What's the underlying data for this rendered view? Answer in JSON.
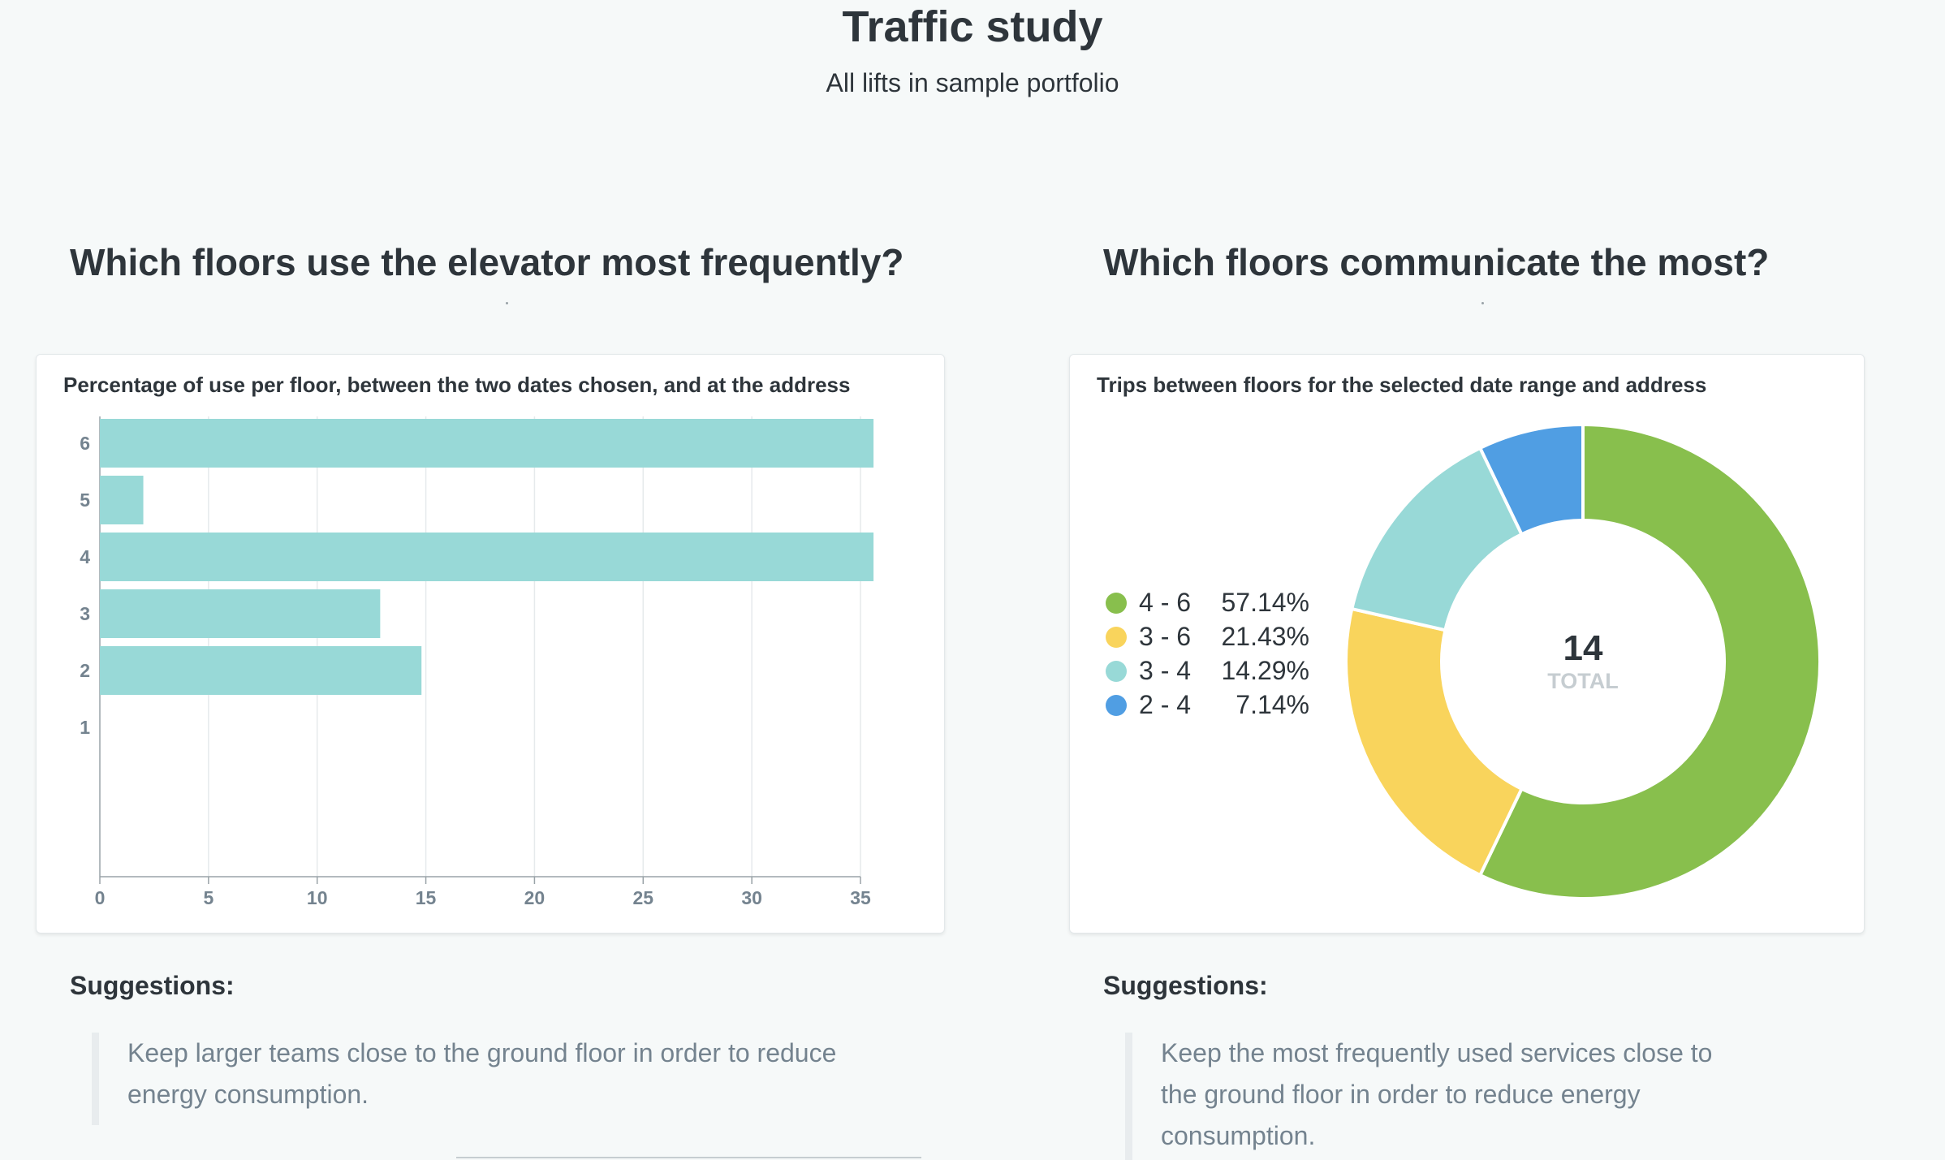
{
  "header": {
    "title": "Traffic study",
    "subtitle": "All lifts in sample portfolio"
  },
  "left_section": {
    "title": "Which floors use the elevator most frequently?",
    "card_title": "Percentage of use per floor, between the two dates chosen, and at the address",
    "suggestions_label": "Suggestions:",
    "suggestion_text": "Keep larger teams close to the ground floor in order to reduce energy consumption."
  },
  "right_section": {
    "title": "Which floors communicate the most?",
    "card_title": "Trips between floors for the selected date range and address",
    "suggestions_label": "Suggestions:",
    "suggestion_text": "Keep the most frequently used services close to the ground floor in order to reduce energy consumption."
  },
  "chart_data": [
    {
      "type": "bar",
      "orientation": "horizontal",
      "title": "Percentage of use per floor, between the two dates chosen, and at the address",
      "categories": [
        "6",
        "5",
        "4",
        "3",
        "2",
        "1"
      ],
      "values": [
        35.7,
        2.0,
        35.7,
        12.9,
        14.8,
        0
      ],
      "xlim": [
        0,
        35
      ],
      "xticks": [
        0,
        5,
        10,
        15,
        20,
        25,
        30,
        35
      ],
      "grid": true,
      "color": "#98d9d7"
    },
    {
      "type": "pie",
      "donut": true,
      "title": "Trips between floors for the selected date range and address",
      "total": 14,
      "total_label": "TOTAL",
      "legend_position": "left",
      "slices": [
        {
          "label": "4 - 6",
          "value": 8,
          "percent": "57.14%",
          "color": "#88bf4d"
        },
        {
          "label": "3 - 6",
          "value": 3,
          "percent": "21.43%",
          "color": "#f9d45c"
        },
        {
          "label": "3 - 4",
          "value": 2,
          "percent": "14.29%",
          "color": "#98d9d7"
        },
        {
          "label": "2 - 4",
          "value": 1,
          "percent": "7.14%",
          "color": "#509ee3"
        }
      ]
    }
  ]
}
